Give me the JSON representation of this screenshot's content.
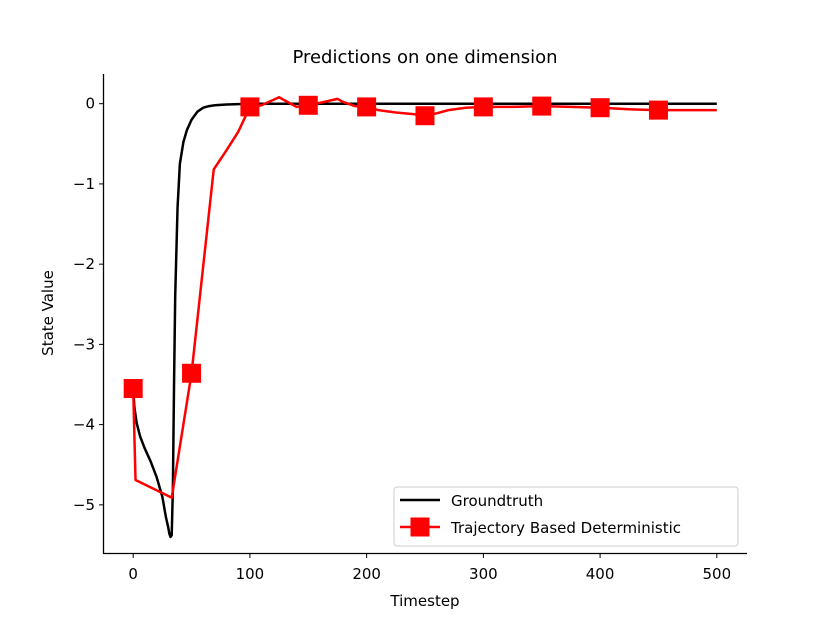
{
  "chart_data": {
    "type": "line",
    "title": "Predictions on one dimension",
    "xlabel": "Timestep",
    "ylabel": "State Value",
    "xlim": [
      -25,
      525
    ],
    "ylim": [
      -5.6,
      0.37
    ],
    "xticks": [
      0,
      100,
      200,
      300,
      400,
      500
    ],
    "yticks": [
      0,
      -1,
      -2,
      -3,
      -4,
      -5
    ],
    "xtick_labels": [
      "0",
      "100",
      "200",
      "300",
      "400",
      "500"
    ],
    "ytick_labels": [
      "0",
      "−1",
      "−2",
      "−3",
      "−4",
      "−5"
    ],
    "grid": false,
    "legend_position": "lower-right",
    "series": [
      {
        "name": "Groundtruth",
        "color": "#000000",
        "marker": "none",
        "x": [
          0,
          1,
          3,
          6,
          10,
          15,
          20,
          25,
          28,
          30,
          31,
          32,
          33,
          34,
          35,
          36,
          38,
          40,
          43,
          46,
          50,
          55,
          60,
          65,
          70,
          80,
          90,
          100,
          120,
          140,
          160,
          200,
          300,
          400,
          500
        ],
        "y": [
          -3.55,
          -3.78,
          -3.98,
          -4.15,
          -4.3,
          -4.46,
          -4.65,
          -4.9,
          -5.15,
          -5.28,
          -5.36,
          -5.4,
          -5.38,
          -4.8,
          -3.5,
          -2.4,
          -1.3,
          -0.75,
          -0.48,
          -0.33,
          -0.2,
          -0.1,
          -0.05,
          -0.03,
          -0.02,
          -0.01,
          -0.005,
          0,
          0,
          0,
          0,
          0,
          0,
          0,
          0
        ]
      },
      {
        "name": "Trajectory Based Deterministic",
        "color": "#ff0000",
        "marker": "square",
        "x": [
          0,
          2,
          33,
          50,
          69,
          80,
          90,
          100,
          110,
          125,
          130,
          140,
          150,
          160,
          175,
          180,
          190,
          200,
          210,
          225,
          240,
          250,
          260,
          270,
          285,
          300,
          325,
          350,
          375,
          400,
          425,
          450,
          475,
          500
        ],
        "y": [
          -3.55,
          -4.69,
          -4.91,
          -3.36,
          -0.82,
          -0.58,
          -0.35,
          -0.04,
          -0.02,
          0.08,
          0.04,
          -0.04,
          -0.02,
          0.01,
          0.06,
          0.02,
          -0.03,
          -0.04,
          -0.08,
          -0.11,
          -0.13,
          -0.15,
          -0.12,
          -0.08,
          -0.05,
          -0.04,
          -0.04,
          -0.03,
          -0.04,
          -0.05,
          -0.07,
          -0.08,
          -0.08,
          -0.08
        ],
        "marker_x": [
          0,
          50,
          100,
          150,
          200,
          250,
          300,
          350,
          400,
          450
        ],
        "marker_y": [
          -3.55,
          -3.36,
          -0.04,
          -0.02,
          -0.04,
          -0.15,
          -0.04,
          -0.03,
          -0.05,
          -0.08
        ]
      }
    ]
  }
}
